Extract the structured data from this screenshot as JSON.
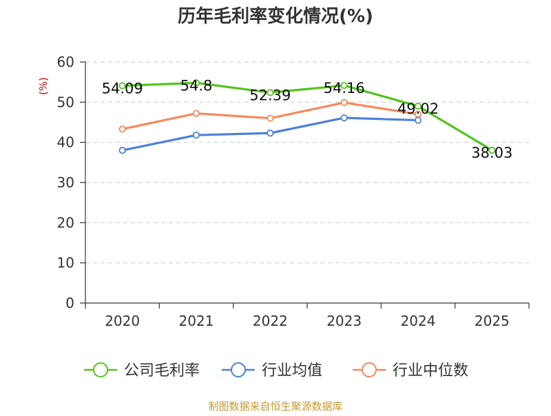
{
  "chart_data": {
    "type": "line",
    "title": "历年毛利率变化情况(%)",
    "ylabel": "(%)",
    "xlabel": "",
    "categories": [
      "2020",
      "2021",
      "2022",
      "2023",
      "2024",
      "2025"
    ],
    "ylim": [
      0,
      60
    ],
    "yticks": [
      "0",
      "10",
      "20",
      "30",
      "40",
      "50",
      "60"
    ],
    "grid": true,
    "legend_position": "bottom",
    "series": [
      {
        "name": "公司毛利率",
        "color": "#52c41a",
        "values": [
          54.09,
          54.8,
          52.39,
          54.16,
          49.02,
          38.03
        ],
        "labels": [
          "54.09",
          "54.8",
          "52.39",
          "54.16",
          "49.02",
          "38.03"
        ]
      },
      {
        "name": "行业均值",
        "color": "#4e7fdb",
        "values": [
          38.0,
          41.8,
          42.3,
          46.1,
          45.5,
          null
        ]
      },
      {
        "name": "行业中位数",
        "color": "#f5895a",
        "values": [
          43.3,
          47.2,
          46.0,
          49.9,
          47.0,
          null
        ]
      }
    ],
    "source": "制图数据来自恒生聚源数据库"
  }
}
